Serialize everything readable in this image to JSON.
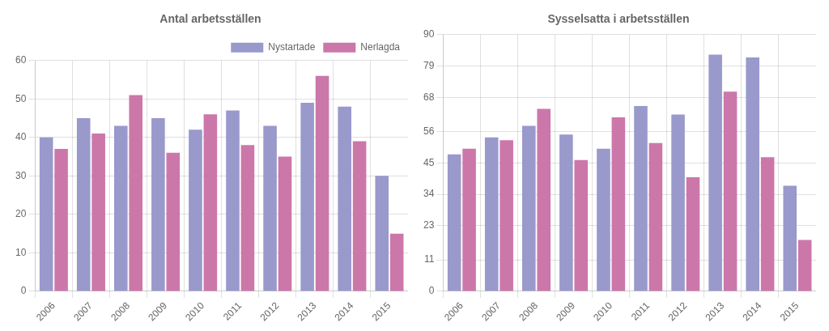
{
  "chart_data": [
    {
      "type": "bar",
      "title": "Antal arbetsställen",
      "categories": [
        "2006",
        "2007",
        "2008",
        "2009",
        "2010",
        "2011",
        "2012",
        "2013",
        "2014",
        "2015"
      ],
      "series": [
        {
          "name": "Nystartade",
          "color": "#9999cc",
          "values": [
            40,
            45,
            43,
            45,
            42,
            47,
            43,
            49,
            48,
            30
          ]
        },
        {
          "name": "Nerlagda",
          "color": "#cc77aa",
          "values": [
            37,
            41,
            51,
            36,
            46,
            38,
            35,
            56,
            39,
            15
          ]
        }
      ],
      "ylim": [
        0,
        60
      ],
      "yticks": [
        0,
        10,
        20,
        30,
        40,
        50,
        60
      ],
      "grid": true,
      "legend": "upper right"
    },
    {
      "type": "bar",
      "title": "Sysselsatta i arbetsställen",
      "categories": [
        "2006",
        "2007",
        "2008",
        "2009",
        "2010",
        "2011",
        "2012",
        "2013",
        "2014",
        "2015"
      ],
      "series": [
        {
          "color": "#9999cc",
          "values": [
            48,
            54,
            58,
            55,
            50,
            65,
            62,
            83,
            82,
            37
          ]
        },
        {
          "color": "#cc77aa",
          "values": [
            50,
            53,
            64,
            46,
            61,
            52,
            40,
            70,
            47,
            18
          ]
        }
      ],
      "ylim": [
        0,
        90
      ],
      "yticks": [
        0,
        11,
        23,
        34,
        45,
        56,
        68,
        79,
        90
      ],
      "grid": true
    }
  ]
}
